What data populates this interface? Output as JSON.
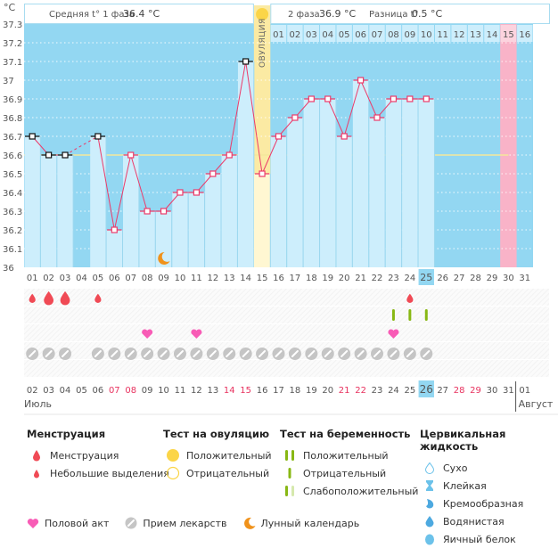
{
  "chart_data": {
    "type": "line",
    "title": "",
    "ylabel": "°C",
    "ylim": [
      36.0,
      37.3
    ],
    "yticks": [
      "36",
      "36.1",
      "36.2",
      "36.3",
      "36.4",
      "36.5",
      "36.6",
      "36.7",
      "36.8",
      "36.9",
      "37",
      "37.1",
      "37.2",
      "37.3"
    ],
    "cycle_days": [
      "01",
      "02",
      "03",
      "04",
      "05",
      "06",
      "07",
      "08",
      "09",
      "10",
      "11",
      "12",
      "13",
      "14",
      "15",
      "16",
      "17",
      "18",
      "19",
      "20",
      "21",
      "22",
      "23",
      "24",
      "25",
      "26",
      "27",
      "28",
      "29",
      "30",
      "31"
    ],
    "phase2_days": [
      "01",
      "02",
      "03",
      "04",
      "05",
      "06",
      "07",
      "08",
      "09",
      "10",
      "11",
      "12",
      "13",
      "14",
      "15",
      "16"
    ],
    "temperatures": [
      36.7,
      36.6,
      36.6,
      null,
      36.7,
      36.2,
      36.6,
      36.3,
      36.3,
      36.4,
      36.4,
      36.5,
      36.6,
      37.1,
      36.5,
      36.7,
      36.8,
      36.9,
      36.9,
      36.7,
      37.0,
      36.8,
      36.9,
      36.9,
      36.9,
      null,
      null,
      null,
      null,
      null,
      null
    ],
    "excluded_points": [
      1,
      2,
      3,
      5,
      14
    ],
    "coverline": 36.6,
    "ovulation_day": 15,
    "current_day": 25,
    "expected_period_day": 30,
    "moon_day": 9,
    "phase1_avg_label": "Средняя t° 1 фаза",
    "phase1_avg": "36.4 °C",
    "phase2_label": "2 фаза",
    "phase2_avg": "36.9 °C",
    "diff_label": "Разница t°",
    "diff_value": "0.5 °C",
    "ovulation_label": "ОВУЛЯЦИЯ",
    "dates": [
      "02",
      "03",
      "04",
      "05",
      "06",
      "07",
      "08",
      "09",
      "10",
      "11",
      "12",
      "13",
      "14",
      "15",
      "16",
      "17",
      "18",
      "19",
      "20",
      "21",
      "22",
      "23",
      "24",
      "25",
      "26",
      "27",
      "28",
      "29",
      "30",
      "31",
      "01"
    ],
    "weekend_dates": [
      "07",
      "08",
      "14",
      "15",
      "21",
      "22",
      "28",
      "29"
    ],
    "today_date": "26",
    "month_start": "Июль",
    "month_next": "Август",
    "menstruation": {
      "1": "small",
      "2": "large",
      "3": "large",
      "5": "small",
      "24": "small"
    },
    "pregnancy_tests": [
      23,
      24,
      25
    ],
    "intercourse": [
      8,
      11,
      23
    ],
    "medications": [
      1,
      2,
      3,
      5,
      6,
      7,
      8,
      9,
      10,
      11,
      12,
      13,
      14,
      15,
      16,
      17,
      18,
      19,
      20,
      21,
      22,
      23,
      24,
      25
    ],
    "colors": {
      "sky": "#93d7f2",
      "bar": "#cdeefc",
      "ovulation": "#fbeaa3",
      "period_expected": "#f9b3c8",
      "line": "#ec3b6a",
      "coverline": "#f5e89b",
      "weekend": "#e8325f",
      "drop": "#f04a55",
      "heart": "#f85cb6",
      "pill": "#c5c5c5",
      "test": "#88b814",
      "moon": "#f0921b"
    }
  },
  "legend": {
    "menstruation": {
      "title": "Менструация",
      "items": [
        "Менструация",
        "Небольшие выделения"
      ]
    },
    "ovulation_test": {
      "title": "Тест на овуляцию",
      "items": [
        "Положительный",
        "Отрицательный"
      ]
    },
    "pregnancy_test": {
      "title": "Тест на беременность",
      "items": [
        "Положительный",
        "Отрицательный",
        "Слабоположительный"
      ]
    },
    "cervical": {
      "title": "Цервикальная жидкость",
      "items": [
        "Сухо",
        "Клейкая",
        "Кремообразная",
        "Водянистая",
        "Яичный белок"
      ]
    },
    "bottom": [
      "Половой акт",
      "Прием лекарств",
      "Лунный календарь"
    ]
  }
}
